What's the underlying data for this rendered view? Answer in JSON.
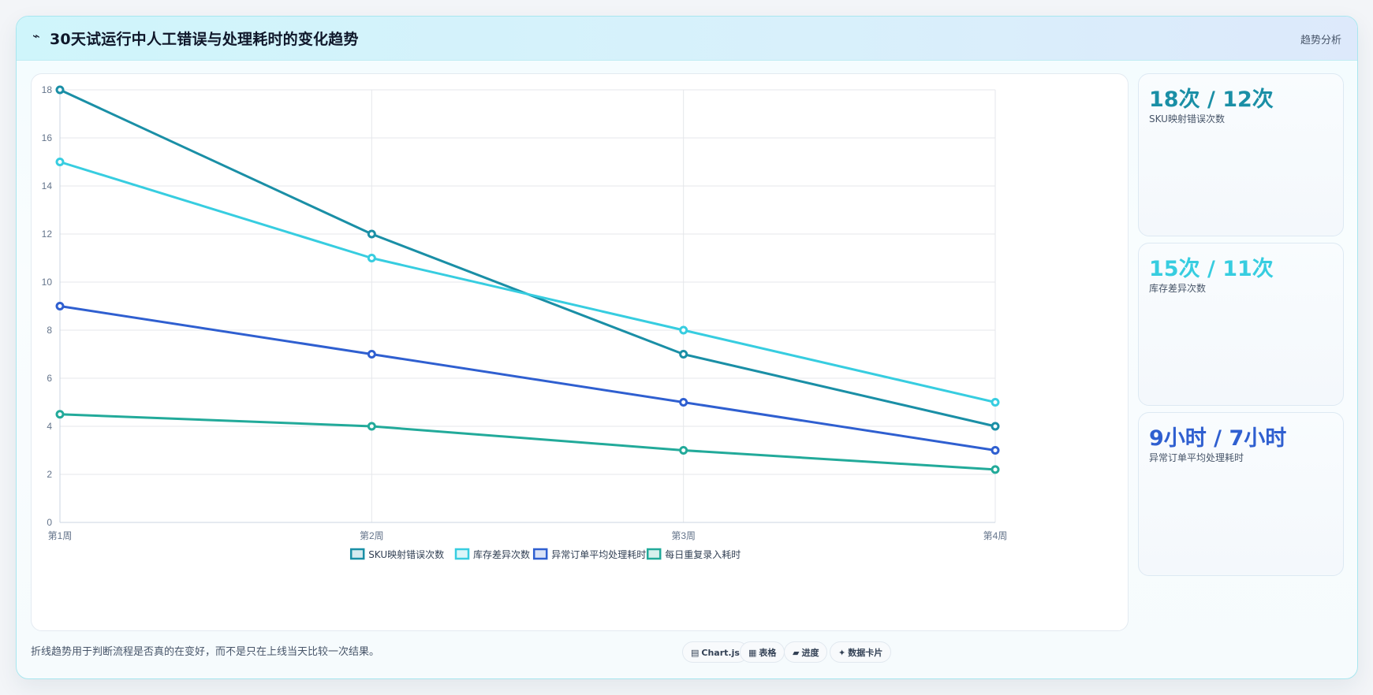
{
  "header": {
    "icon": "lightning-icon",
    "title": "30天试运行中人工错误与处理耗时的变化趋势",
    "tag": "趋势分析"
  },
  "chart_data": {
    "type": "line",
    "categories": [
      "第1周",
      "第2周",
      "第3周",
      "第4周"
    ],
    "series": [
      {
        "name": "SKU映射错误次数",
        "color": "#1a8fa6",
        "values": [
          18,
          12,
          7,
          4
        ]
      },
      {
        "name": "库存差异次数",
        "color": "#37cde0",
        "values": [
          15,
          11,
          8,
          5
        ]
      },
      {
        "name": "异常订单平均处理耗时",
        "color": "#2f5fd0",
        "values": [
          9,
          7,
          5,
          3
        ]
      },
      {
        "name": "每日重复录入耗时",
        "color": "#22aa9a",
        "values": [
          4.5,
          4,
          3,
          2.2
        ]
      }
    ],
    "ylim": [
      0,
      18
    ],
    "yticks": [
      "0",
      "2",
      "4",
      "6",
      "8",
      "10",
      "12",
      "14",
      "16",
      "18"
    ],
    "grid": true,
    "legend_position": "bottom"
  },
  "stats": [
    {
      "value": "18次 / 12次",
      "label": "SKU映射错误次数",
      "color": "#1a8fa6"
    },
    {
      "value": "15次 / 11次",
      "label": "库存差异次数",
      "color": "#37cde0"
    },
    {
      "value": "9小时 / 7小时",
      "label": "异常订单平均处理耗时",
      "color": "#2f5fd0"
    }
  ],
  "footer": {
    "note": "折线趋势用于判断流程是否真的在变好，而不是只在上线当天比较一次结果。",
    "pills": [
      {
        "icon": "chart-icon",
        "glyph": "▤",
        "label": "Chart.js"
      },
      {
        "icon": "table-icon",
        "glyph": "▦",
        "label": "表格"
      },
      {
        "icon": "progress-icon",
        "glyph": "▰",
        "label": "进度"
      },
      {
        "icon": "sparkle-icon",
        "glyph": "✦",
        "label": "数据卡片"
      }
    ]
  }
}
